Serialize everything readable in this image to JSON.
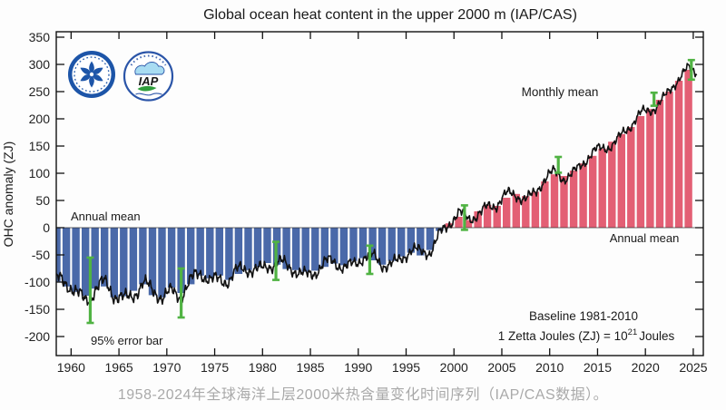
{
  "page": {
    "caption": "1958-2024年全球海洋上层2000米热含量变化时间序列（IAP/CAS数据）。"
  },
  "chart": {
    "annotations": {
      "annual_mean_left": "Annual mean",
      "monthly_mean": "Monthly mean",
      "annual_mean_right": "Annual mean",
      "error_bar_label": "95% error bar",
      "baseline_note": "Baseline 1981-2010",
      "unit_prefix": "1 Zetta Joules (ZJ) = 10",
      "unit_sup": "21",
      "unit_suffix": "Joules"
    },
    "logos": {
      "iap_text": "IAP"
    },
    "text_colors": {
      "annual_left": "#3660b0",
      "annual_right": "#e0515f",
      "error_label": "#5cba4c",
      "notes": "#3a3a3a"
    }
  },
  "chart_data": {
    "type": "bar+line",
    "title": "Global ocean heat content in the upper 2000 m (IAP/CAS)",
    "xlabel": "",
    "ylabel": "OHC anomaly (ZJ)",
    "xlim": [
      1958.45,
      2026.05
    ],
    "ylim": [
      -235,
      360
    ],
    "x_ticks": [
      1960,
      1965,
      1970,
      1975,
      1980,
      1985,
      1990,
      1995,
      2000,
      2005,
      2010,
      2015,
      2020,
      2025
    ],
    "y_ticks": [
      -200,
      -150,
      -100,
      -50,
      0,
      50,
      100,
      150,
      200,
      250,
      300,
      350
    ],
    "grid": false,
    "colors": {
      "bar_negative": "#4a69a9",
      "bar_positive": "#e35f74",
      "line": "#111111",
      "errorbar": "#50b343"
    },
    "series": [
      {
        "name": "Annual mean",
        "type": "bar",
        "years": [
          1958,
          1959,
          1960,
          1961,
          1962,
          1963,
          1964,
          1965,
          1966,
          1967,
          1968,
          1969,
          1970,
          1971,
          1972,
          1973,
          1974,
          1975,
          1976,
          1977,
          1978,
          1979,
          1980,
          1981,
          1982,
          1983,
          1984,
          1985,
          1986,
          1987,
          1988,
          1989,
          1990,
          1991,
          1992,
          1993,
          1994,
          1995,
          1996,
          1997,
          1998,
          1999,
          2000,
          2001,
          2002,
          2003,
          2004,
          2005,
          2006,
          2007,
          2008,
          2009,
          2010,
          2011,
          2012,
          2013,
          2014,
          2015,
          2016,
          2017,
          2018,
          2019,
          2020,
          2021,
          2022,
          2023,
          2024
        ],
        "values": [
          -100,
          -108,
          -118,
          -125,
          -112,
          -108,
          -128,
          -126,
          -116,
          -104,
          -124,
          -128,
          -110,
          -120,
          -104,
          -88,
          -93,
          -88,
          -96,
          -85,
          -78,
          -72,
          -65,
          -68,
          -76,
          -78,
          -81,
          -79,
          -72,
          -66,
          -69,
          -61,
          -56,
          -60,
          -68,
          -61,
          -53,
          -46,
          -51,
          -41,
          -6,
          8,
          20,
          14,
          30,
          42,
          40,
          55,
          62,
          58,
          66,
          85,
          98,
          95,
          105,
          118,
          132,
          145,
          158,
          172,
          185,
          205,
          218,
          235,
          250,
          270,
          290
        ]
      },
      {
        "name": "Monthly mean",
        "type": "line",
        "synthesis": {
          "base": "linear-interpolation-of-annual-means-at-midyear",
          "t_start": 1958.45,
          "t_end": 2025.4,
          "steps_per_year": 12,
          "noise_components": [
            {
              "amp": 7.5,
              "period": 2.35,
              "phase": 1.2
            },
            {
              "amp": 5.5,
              "period": 0.52,
              "phase": 2.1
            },
            {
              "amp": 6.5,
              "period": 4.6,
              "phase": 0.5
            },
            {
              "amp": 3.5,
              "period": 0.23,
              "phase": 4.0
            }
          ],
          "noise_scale_start": 1.25,
          "noise_scale_end": 0.8
        }
      },
      {
        "name": "95% error bar",
        "type": "errorbar",
        "points": [
          {
            "x": 1962.0,
            "lo": -175,
            "hi": -55
          },
          {
            "x": 1971.5,
            "lo": -165,
            "hi": -75
          },
          {
            "x": 1981.4,
            "lo": -96,
            "hi": -26
          },
          {
            "x": 1991.2,
            "lo": -85,
            "hi": -33
          },
          {
            "x": 2001.1,
            "lo": -4,
            "hi": 41
          },
          {
            "x": 2010.9,
            "lo": 101,
            "hi": 130
          },
          {
            "x": 2020.9,
            "lo": 224,
            "hi": 248
          },
          {
            "x": 2024.8,
            "lo": 272,
            "hi": 308
          }
        ]
      }
    ],
    "legend_position": "annotations-inside-plot"
  }
}
